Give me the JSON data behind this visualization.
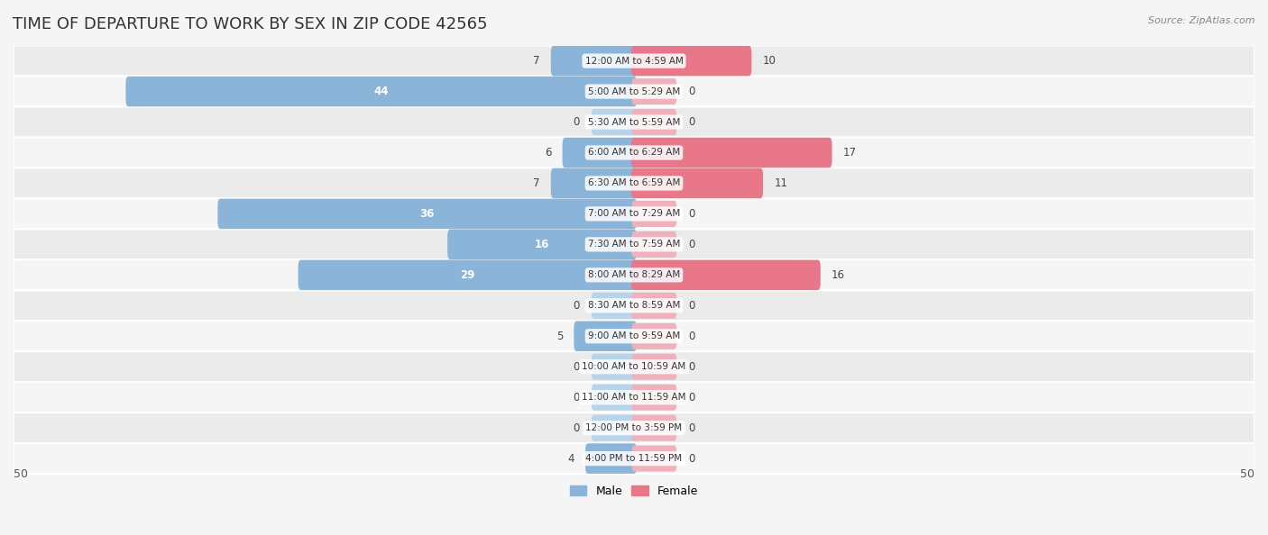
{
  "title": "TIME OF DEPARTURE TO WORK BY SEX IN ZIP CODE 42565",
  "source": "Source: ZipAtlas.com",
  "categories": [
    "12:00 AM to 4:59 AM",
    "5:00 AM to 5:29 AM",
    "5:30 AM to 5:59 AM",
    "6:00 AM to 6:29 AM",
    "6:30 AM to 6:59 AM",
    "7:00 AM to 7:29 AM",
    "7:30 AM to 7:59 AM",
    "8:00 AM to 8:29 AM",
    "8:30 AM to 8:59 AM",
    "9:00 AM to 9:59 AM",
    "10:00 AM to 10:59 AM",
    "11:00 AM to 11:59 AM",
    "12:00 PM to 3:59 PM",
    "4:00 PM to 11:59 PM"
  ],
  "male_values": [
    7,
    44,
    0,
    6,
    7,
    36,
    16,
    29,
    0,
    5,
    0,
    0,
    0,
    4
  ],
  "female_values": [
    10,
    0,
    0,
    17,
    11,
    0,
    0,
    16,
    0,
    0,
    0,
    0,
    0,
    0
  ],
  "male_bar_color": "#8ab4d8",
  "female_bar_color": "#e8778a",
  "male_stub_color": "#b8d4ea",
  "female_stub_color": "#f0b0bc",
  "bg_color": "#f5f5f5",
  "row_color_even": "#ebebeb",
  "row_color_odd": "#f5f5f5",
  "axis_limit": 50,
  "title_fontsize": 13,
  "label_fontsize": 8.5,
  "cat_fontsize": 7.5,
  "legend_fontsize": 9,
  "value_threshold_inside": 12
}
